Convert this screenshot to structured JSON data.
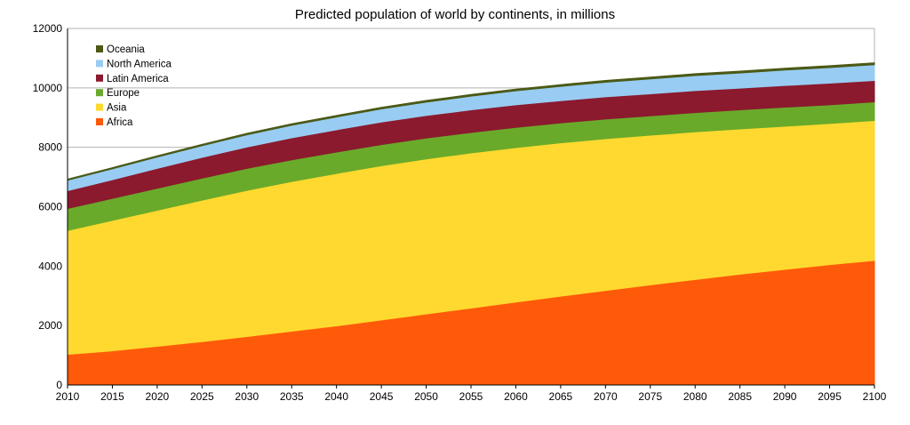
{
  "chart_data": {
    "type": "area",
    "stacked": true,
    "title": "Predicted population of world by continents, in millions",
    "xlabel": "",
    "ylabel": "",
    "x": [
      2010,
      2015,
      2020,
      2025,
      2030,
      2035,
      2040,
      2045,
      2050,
      2055,
      2060,
      2065,
      2070,
      2075,
      2080,
      2085,
      2090,
      2095,
      2100
    ],
    "ylim": [
      0,
      12000
    ],
    "yticks": [
      0,
      2000,
      4000,
      6000,
      8000,
      10000,
      12000
    ],
    "grid": true,
    "legend_position": "top-left",
    "series": [
      {
        "name": "Africa",
        "color": "#ff5a0a",
        "values": [
          1030,
          1150,
          1300,
          1460,
          1630,
          1810,
          1990,
          2190,
          2390,
          2590,
          2790,
          2990,
          3180,
          3370,
          3550,
          3730,
          3890,
          4050,
          4190
        ]
      },
      {
        "name": "Asia",
        "color": "#ffd92f",
        "values": [
          4170,
          4390,
          4580,
          4760,
          4920,
          5040,
          5130,
          5190,
          5220,
          5220,
          5200,
          5160,
          5110,
          5040,
          4970,
          4890,
          4820,
          4750,
          4710
        ]
      },
      {
        "name": "Europe",
        "color": "#6aaa2a",
        "values": [
          740,
          740,
          740,
          740,
          740,
          730,
          720,
          710,
          700,
          690,
          680,
          670,
          660,
          650,
          650,
          640,
          640,
          630,
          630
        ]
      },
      {
        "name": "Latin America",
        "color": "#8b1a2e",
        "values": [
          600,
          630,
          670,
          700,
          720,
          740,
          750,
          760,
          760,
          760,
          760,
          750,
          750,
          740,
          740,
          730,
          730,
          730,
          720
        ]
      },
      {
        "name": "North America",
        "color": "#99ccf2",
        "values": [
          350,
          365,
          380,
          395,
          410,
          420,
          430,
          440,
          450,
          460,
          470,
          480,
          490,
          500,
          505,
          510,
          520,
          525,
          530
        ]
      },
      {
        "name": "Oceania",
        "color": "#4b5a16",
        "values": [
          37,
          39,
          42,
          45,
          48,
          50,
          52,
          54,
          56,
          57,
          58,
          59,
          60,
          61,
          61,
          62,
          62,
          62,
          62
        ]
      }
    ]
  }
}
